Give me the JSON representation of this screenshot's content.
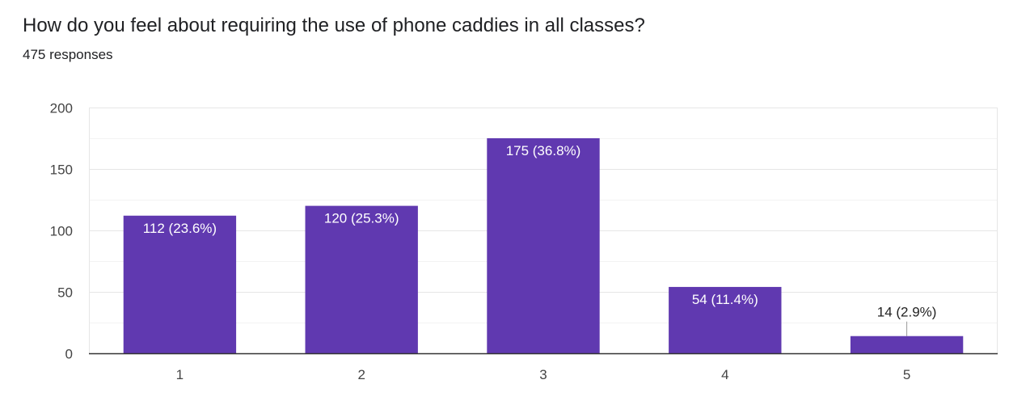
{
  "question": {
    "title": "How do you feel about requiring the use of phone caddies in all classes?",
    "responses": "475 responses"
  },
  "colors": {
    "bar": "#6039b0",
    "grid": "#e6e6e6",
    "axis": "#333333",
    "label_inside": "#ffffff",
    "label_outside": "#222222"
  },
  "chart_data": {
    "type": "bar",
    "title": "How do you feel about requiring the use of phone caddies in all classes?",
    "xlabel": "",
    "ylabel": "",
    "ylim": [
      0,
      200
    ],
    "yticks": [
      0,
      50,
      100,
      150,
      200
    ],
    "grid": true,
    "categories": [
      "1",
      "2",
      "3",
      "4",
      "5"
    ],
    "values": [
      112,
      120,
      175,
      54,
      14
    ],
    "data_labels": [
      "112 (23.6%)",
      "120 (25.3%)",
      "175 (36.8%)",
      "54 (11.4%)",
      "14 (2.9%)"
    ]
  }
}
